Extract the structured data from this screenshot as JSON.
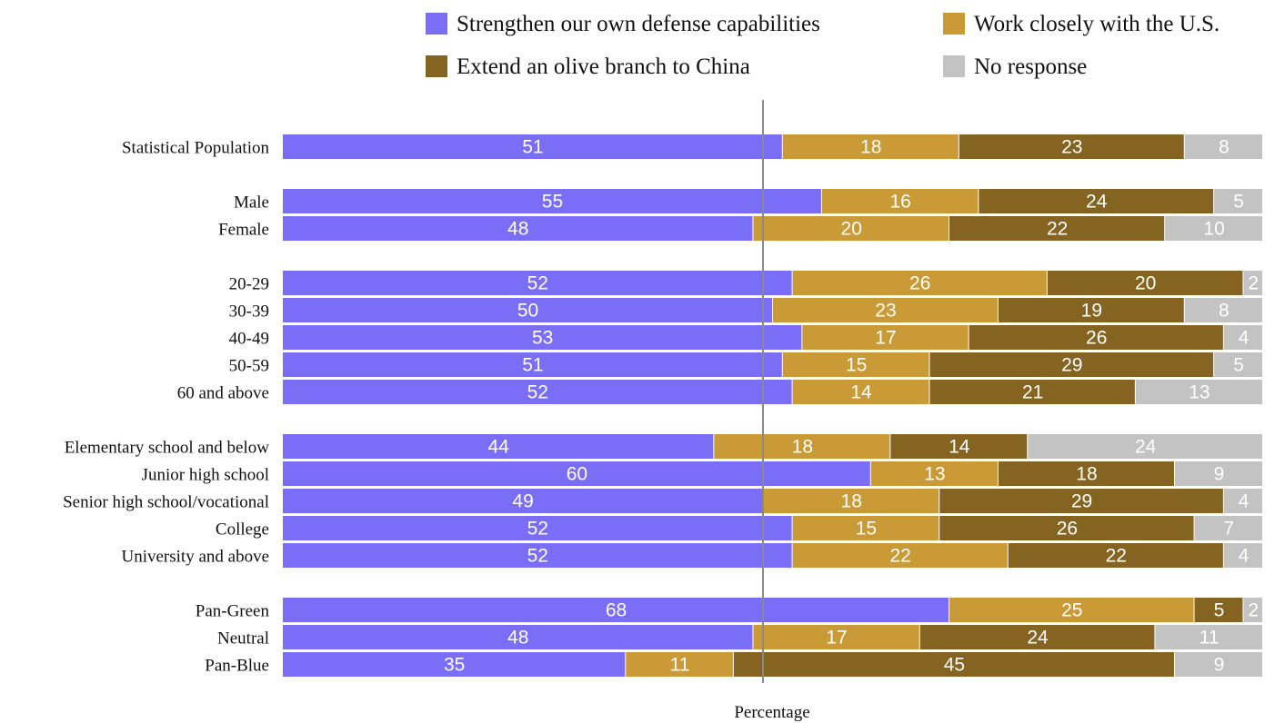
{
  "chart_data": {
    "type": "bar",
    "orientation": "horizontal",
    "stacked": true,
    "xlabel": "Percentage",
    "xlim": [
      0,
      100
    ],
    "reference_line": 50,
    "legend_position": "top-right",
    "grid": false,
    "categories": [
      "Statistical Population",
      "Male",
      "Female",
      "20-29",
      "30-39",
      "40-49",
      "50-59",
      "60 and above",
      "Elementary school and below",
      "Junior high school",
      "Senior high school/vocational",
      "College",
      "University and above",
      "Pan-Green",
      "Neutral",
      "Pan-Blue"
    ],
    "groups": [
      [
        0
      ],
      [
        1,
        2
      ],
      [
        3,
        4,
        5,
        6,
        7
      ],
      [
        8,
        9,
        10,
        11,
        12
      ],
      [
        13,
        14,
        15
      ]
    ],
    "series": [
      {
        "name": "Strengthen our own defense capabilities",
        "color": "#7b6ef6",
        "values": [
          51,
          55,
          48,
          52,
          50,
          53,
          51,
          52,
          44,
          60,
          49,
          52,
          52,
          68,
          48,
          35
        ]
      },
      {
        "name": "Work closely with the U.S.",
        "color": "#c99a36",
        "values": [
          18,
          16,
          20,
          26,
          23,
          17,
          15,
          14,
          18,
          13,
          18,
          15,
          22,
          25,
          17,
          11
        ]
      },
      {
        "name": "Extend an olive branch to China",
        "color": "#856421",
        "values": [
          23,
          24,
          22,
          20,
          19,
          26,
          29,
          21,
          14,
          18,
          29,
          26,
          22,
          5,
          24,
          45
        ]
      },
      {
        "name": "No response",
        "color": "#c3c3c3",
        "values": [
          8,
          5,
          10,
          2,
          8,
          4,
          5,
          13,
          24,
          9,
          4,
          7,
          4,
          2,
          11,
          9
        ]
      }
    ],
    "legend_layout": [
      [
        0,
        1
      ],
      [
        2,
        3
      ]
    ]
  }
}
